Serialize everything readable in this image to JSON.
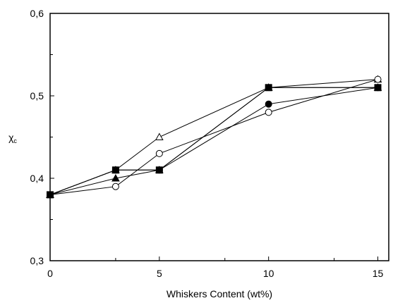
{
  "chart_data": {
    "type": "line",
    "title": "",
    "xlabel": "Whiskers Content (wt%)",
    "ylabel": "χ",
    "ylabel_subscript": "c",
    "xlim": [
      0,
      15.5
    ],
    "ylim": [
      0.3,
      0.6
    ],
    "x_ticks": [
      0,
      5,
      10,
      15
    ],
    "x_tick_labels": [
      "0",
      "5",
      "10",
      "15"
    ],
    "x_minor_ticks": [
      3,
      8,
      13
    ],
    "y_ticks": [
      0.3,
      0.4,
      0.5,
      0.6
    ],
    "y_tick_labels": [
      "0,3",
      "0,4",
      "0,5",
      "0,6"
    ],
    "y_minor_ticks": [
      0.35,
      0.45,
      0.55
    ],
    "grid": false,
    "legend": "none",
    "series": [
      {
        "marker": "triangle-open",
        "color": "#000000",
        "x": [
          0,
          3,
          5,
          10,
          15
        ],
        "y": [
          0.38,
          0.41,
          0.45,
          0.51,
          0.52
        ]
      },
      {
        "marker": "circle-open",
        "color": "#000000",
        "x": [
          0,
          3,
          5,
          10,
          15
        ],
        "y": [
          0.38,
          0.39,
          0.43,
          0.48,
          0.52
        ]
      },
      {
        "marker": "triangle-filled",
        "color": "#000000",
        "x": [
          0,
          3,
          5,
          10,
          15
        ],
        "y": [
          0.38,
          0.4,
          0.41,
          0.51,
          0.51
        ]
      },
      {
        "marker": "circle-filled",
        "color": "#000000",
        "x": [
          0,
          3,
          5,
          10,
          15
        ],
        "y": [
          0.38,
          0.41,
          0.41,
          0.49,
          0.51
        ]
      },
      {
        "marker": "square-filled",
        "color": "#000000",
        "x": [
          0,
          3,
          5,
          10,
          15
        ],
        "y": [
          0.38,
          0.41,
          0.41,
          0.51,
          0.51
        ]
      }
    ]
  }
}
